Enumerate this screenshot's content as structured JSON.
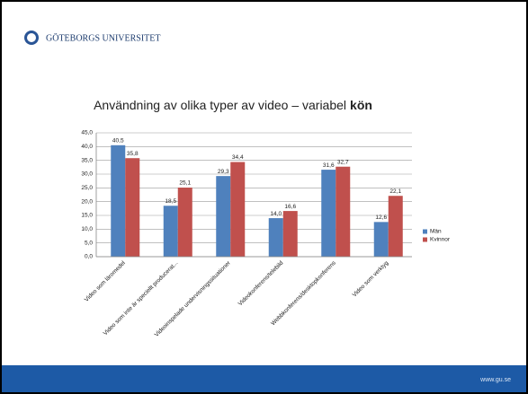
{
  "header": {
    "logo_text": "GÖTEBORGS UNIVERSITET"
  },
  "footer": {
    "url": "www.gu.se"
  },
  "chart_data": {
    "type": "bar",
    "title": "Användning av olika typer av video – variabel",
    "title_emphasis": "kön",
    "categories": [
      "Video som läromedel",
      "Video som inte är speciellt producerat...",
      "Videoinspelade undervisningssituationer",
      "Videokonferens/telebild",
      "Webbkonferens/desktopkonferens",
      "Video som verktyg"
    ],
    "series": [
      {
        "name": "Män",
        "color": "#4f81bd",
        "values": [
          40.5,
          18.5,
          29.3,
          14.0,
          31.6,
          12.6
        ],
        "value_labels": [
          "40,5",
          "18,5",
          "29,3",
          "14,0",
          "31,6",
          "12,6"
        ]
      },
      {
        "name": "Kvinnor",
        "color": "#c0504d",
        "values": [
          35.8,
          25.1,
          34.4,
          16.6,
          32.7,
          22.1
        ],
        "value_labels": [
          "35,8",
          "25,1",
          "34,4",
          "16,6",
          "32,7",
          "22,1"
        ]
      }
    ],
    "ylim": [
      0,
      45
    ],
    "yticks": [
      {
        "value": 0,
        "label": "0,0"
      },
      {
        "value": 5,
        "label": "5,0"
      },
      {
        "value": 10,
        "label": "10,0"
      },
      {
        "value": 15,
        "label": "15,0"
      },
      {
        "value": 20,
        "label": "20,0"
      },
      {
        "value": 25,
        "label": "25,0"
      },
      {
        "value": 30,
        "label": "30,0"
      },
      {
        "value": 35,
        "label": "35,0"
      },
      {
        "value": 40,
        "label": "40,0"
      },
      {
        "value": 45,
        "label": "45,0"
      }
    ],
    "grid": true,
    "legend": "right"
  }
}
